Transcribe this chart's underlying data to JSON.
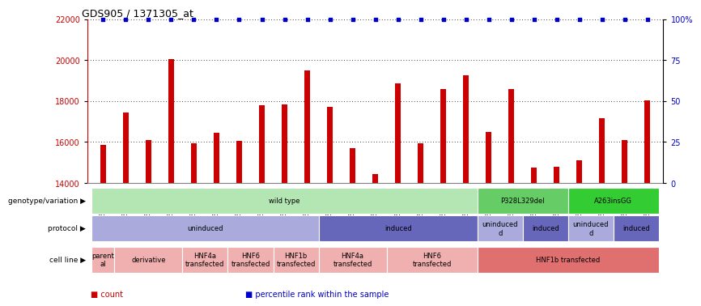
{
  "title": "GDS905 / 1371305_at",
  "samples": [
    "GSM27203",
    "GSM27204",
    "GSM27205",
    "GSM27206",
    "GSM27207",
    "GSM27150",
    "GSM27152",
    "GSM27156",
    "GSM27159",
    "GSM27063",
    "GSM27148",
    "GSM27151",
    "GSM27153",
    "GSM27157",
    "GSM27160",
    "GSM27147",
    "GSM27149",
    "GSM27161",
    "GSM27165",
    "GSM27163",
    "GSM27167",
    "GSM27169",
    "GSM27171",
    "GSM27170",
    "GSM27172"
  ],
  "counts": [
    15850,
    17450,
    16100,
    20050,
    15950,
    16450,
    16050,
    17800,
    17850,
    19500,
    17700,
    15700,
    14450,
    18850,
    15950,
    18600,
    19250,
    16500,
    18600,
    14750,
    14800,
    15100,
    17150,
    16100,
    18050
  ],
  "percentile_rank": [
    100,
    100,
    100,
    100,
    100,
    100,
    100,
    100,
    100,
    100,
    100,
    100,
    100,
    100,
    100,
    100,
    100,
    100,
    100,
    100,
    100,
    100,
    100,
    100,
    100
  ],
  "bar_color": "#cc0000",
  "dot_color": "#0000cc",
  "ylim_left": [
    14000,
    22000
  ],
  "yticks_left": [
    14000,
    16000,
    18000,
    20000,
    22000
  ],
  "ylim_right": [
    0,
    100
  ],
  "yticks_right": [
    0,
    25,
    50,
    75,
    100
  ],
  "yticklabels_right": [
    "0",
    "25",
    "50",
    "75",
    "100%"
  ],
  "grid_values": [
    16000,
    18000,
    20000
  ],
  "background_color": "#ffffff",
  "bar_width": 0.25,
  "genotype_row": {
    "label": "genotype/variation",
    "segments": [
      {
        "text": "wild type",
        "start": 0,
        "end": 17,
        "color": "#b3e6b3",
        "textcolor": "#000000"
      },
      {
        "text": "P328L329del",
        "start": 17,
        "end": 21,
        "color": "#66cc66",
        "textcolor": "#000000"
      },
      {
        "text": "A263insGG",
        "start": 21,
        "end": 25,
        "color": "#33cc33",
        "textcolor": "#000000"
      }
    ]
  },
  "protocol_row": {
    "label": "protocol",
    "segments": [
      {
        "text": "uninduced",
        "start": 0,
        "end": 10,
        "color": "#aaaadd",
        "textcolor": "#000000"
      },
      {
        "text": "induced",
        "start": 10,
        "end": 17,
        "color": "#6666bb",
        "textcolor": "#000000"
      },
      {
        "text": "uninduced\nd",
        "start": 17,
        "end": 19,
        "color": "#aaaadd",
        "textcolor": "#000000"
      },
      {
        "text": "induced",
        "start": 19,
        "end": 21,
        "color": "#6666bb",
        "textcolor": "#000000"
      },
      {
        "text": "uninduced\nd",
        "start": 21,
        "end": 23,
        "color": "#aaaadd",
        "textcolor": "#000000"
      },
      {
        "text": "induced",
        "start": 23,
        "end": 25,
        "color": "#6666bb",
        "textcolor": "#000000"
      }
    ]
  },
  "cellline_row": {
    "label": "cell line",
    "segments": [
      {
        "text": "parent\nal",
        "start": 0,
        "end": 1,
        "color": "#f0b0b0",
        "textcolor": "#000000"
      },
      {
        "text": "derivative",
        "start": 1,
        "end": 4,
        "color": "#f0b0b0",
        "textcolor": "#000000"
      },
      {
        "text": "HNF4a\ntransfected",
        "start": 4,
        "end": 6,
        "color": "#f0b0b0",
        "textcolor": "#000000"
      },
      {
        "text": "HNF6\ntransfected",
        "start": 6,
        "end": 8,
        "color": "#f0b0b0",
        "textcolor": "#000000"
      },
      {
        "text": "HNF1b\ntransfected",
        "start": 8,
        "end": 10,
        "color": "#f0b0b0",
        "textcolor": "#000000"
      },
      {
        "text": "HNF4a\ntransfected",
        "start": 10,
        "end": 13,
        "color": "#f0b0b0",
        "textcolor": "#000000"
      },
      {
        "text": "HNF6\ntransfected",
        "start": 13,
        "end": 17,
        "color": "#f0b0b0",
        "textcolor": "#000000"
      },
      {
        "text": "HNF1b transfected",
        "start": 17,
        "end": 25,
        "color": "#e07070",
        "textcolor": "#000000"
      }
    ]
  },
  "legend_items": [
    {
      "color": "#cc0000",
      "label": "count"
    },
    {
      "color": "#0000cc",
      "label": "percentile rank within the sample"
    }
  ]
}
